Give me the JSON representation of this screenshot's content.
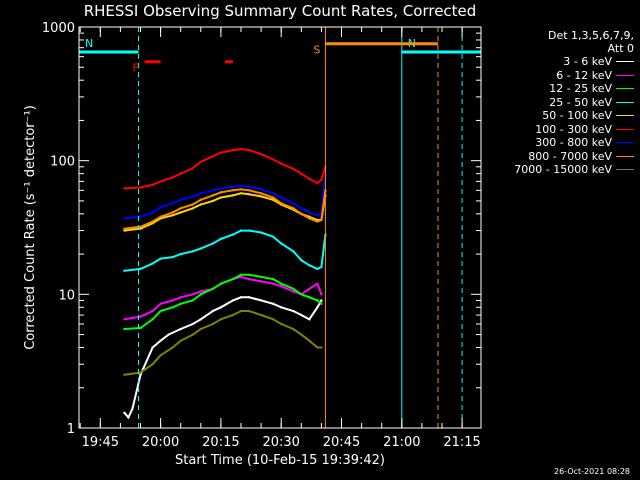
{
  "chart_data": {
    "type": "line",
    "title": "RHESSI Observing Summary Count Rates, Corrected",
    "xlabel": "Start Time (10-Feb-15 19:39:42)",
    "ylabel": "Corrected Count Rate (s⁻¹ detector⁻¹)",
    "yscale": "log",
    "ylim": [
      1,
      1000
    ],
    "y_ticks": [
      {
        "v": 1,
        "label": "1"
      },
      {
        "v": 10,
        "label": "10"
      },
      {
        "v": 100,
        "label": "100"
      },
      {
        "v": 1000,
        "label": "1000"
      }
    ],
    "xlim": [
      "19:39:42",
      "21:19:42"
    ],
    "x_ticks": [
      "19:45",
      "20:00",
      "20:15",
      "20:30",
      "20:45",
      "21:00",
      "21:15"
    ],
    "legend_header": [
      "Det 1,3,5,6,7,9,",
      "Att 0"
    ],
    "legend_position": "right",
    "series": [
      {
        "name": "3 - 6 keV",
        "color": "#ffffff",
        "x": [
          "19:51",
          "19:52",
          "19:53",
          "19:55",
          "19:58",
          "20:00",
          "20:02",
          "20:05",
          "20:08",
          "20:10",
          "20:13",
          "20:15",
          "20:18",
          "20:20",
          "20:22",
          "20:25",
          "20:28",
          "20:30",
          "20:33",
          "20:35",
          "20:37",
          "20:39",
          "20:40"
        ],
        "y": [
          1.3,
          1.2,
          1.4,
          2.5,
          4.0,
          4.5,
          5.0,
          5.5,
          6.0,
          6.5,
          7.5,
          8.0,
          9.0,
          9.5,
          9.5,
          9.0,
          8.5,
          8.0,
          7.5,
          7.0,
          6.5,
          8.0,
          9.0
        ]
      },
      {
        "name": "6 - 12 keV",
        "color": "#ff00ff",
        "x": [
          "19:51",
          "19:55",
          "19:58",
          "20:00",
          "20:03",
          "20:05",
          "20:08",
          "20:10",
          "20:13",
          "20:15",
          "20:18",
          "20:20",
          "20:22",
          "20:25",
          "20:28",
          "20:30",
          "20:33",
          "20:35",
          "20:37",
          "20:39",
          "20:40"
        ],
        "y": [
          6.5,
          6.8,
          7.5,
          8.5,
          9.0,
          9.5,
          10.0,
          10.5,
          11.0,
          12.0,
          13.0,
          13.5,
          13.0,
          12.5,
          12.0,
          11.5,
          10.5,
          10.0,
          11.0,
          12.0,
          10.0
        ]
      },
      {
        "name": "12 - 25 keV",
        "color": "#00ff00",
        "x": [
          "19:51",
          "19:55",
          "19:58",
          "20:00",
          "20:03",
          "20:05",
          "20:08",
          "20:10",
          "20:13",
          "20:15",
          "20:18",
          "20:20",
          "20:22",
          "20:25",
          "20:28",
          "20:30",
          "20:33",
          "20:35",
          "20:37",
          "20:39",
          "20:40"
        ],
        "y": [
          5.5,
          5.6,
          6.5,
          7.5,
          8.0,
          8.5,
          9.0,
          10.0,
          11.0,
          12.0,
          13.0,
          14.0,
          14.0,
          13.5,
          13.0,
          12.0,
          11.0,
          10.0,
          9.5,
          9.0,
          8.5
        ]
      },
      {
        "name": "25 - 50 keV",
        "color": "#00ffff",
        "x": [
          "19:51",
          "19:55",
          "19:58",
          "20:00",
          "20:03",
          "20:05",
          "20:08",
          "20:10",
          "20:13",
          "20:15",
          "20:18",
          "20:20",
          "20:22",
          "20:25",
          "20:28",
          "20:30",
          "20:33",
          "20:35",
          "20:37",
          "20:39",
          "20:40",
          "20:41"
        ],
        "y": [
          15,
          15.5,
          17,
          18.5,
          19,
          20,
          21,
          22,
          24,
          26,
          28,
          30,
          30,
          29,
          27,
          24,
          21,
          18,
          16.5,
          15.5,
          16,
          28
        ]
      },
      {
        "name": "50 - 100 keV",
        "color": "#ffd700",
        "x": [
          "19:51",
          "19:55",
          "19:58",
          "20:00",
          "20:03",
          "20:05",
          "20:08",
          "20:10",
          "20:13",
          "20:15",
          "20:18",
          "20:20",
          "20:22",
          "20:25",
          "20:28",
          "20:30",
          "20:33",
          "20:35",
          "20:37",
          "20:39",
          "20:40",
          "20:41"
        ],
        "y": [
          30,
          31,
          34,
          37,
          39,
          41,
          44,
          47,
          50,
          53,
          55,
          57,
          56,
          54,
          51,
          47,
          43,
          40,
          38,
          36,
          36,
          55
        ]
      },
      {
        "name": "100 - 300 keV",
        "color": "#ff0000",
        "x": [
          "19:51",
          "19:55",
          "19:58",
          "20:00",
          "20:03",
          "20:05",
          "20:08",
          "20:10",
          "20:13",
          "20:15",
          "20:18",
          "20:20",
          "20:22",
          "20:25",
          "20:28",
          "20:30",
          "20:33",
          "20:35",
          "20:37",
          "20:39",
          "20:40",
          "20:41"
        ],
        "y": [
          62,
          63,
          66,
          70,
          75,
          80,
          88,
          98,
          108,
          115,
          120,
          122,
          120,
          112,
          102,
          95,
          87,
          80,
          73,
          68,
          72,
          90
        ]
      },
      {
        "name": "300 - 800 keV",
        "color": "#0000ff",
        "x": [
          "19:51",
          "19:55",
          "19:58",
          "20:00",
          "20:03",
          "20:05",
          "20:08",
          "20:10",
          "20:13",
          "20:15",
          "20:18",
          "20:20",
          "20:22",
          "20:25",
          "20:28",
          "20:30",
          "20:33",
          "20:35",
          "20:37",
          "20:39",
          "20:40",
          "20:41"
        ],
        "y": [
          37,
          38,
          41,
          45,
          48,
          51,
          54,
          57,
          60,
          62,
          64,
          65,
          64,
          61,
          57,
          53,
          48,
          44,
          41,
          39,
          40,
          80
        ]
      },
      {
        "name": "800 - 7000 keV",
        "color": "#ff8c00",
        "x": [
          "19:51",
          "19:55",
          "19:58",
          "20:00",
          "20:03",
          "20:05",
          "20:08",
          "20:10",
          "20:13",
          "20:15",
          "20:18",
          "20:20",
          "20:22",
          "20:25",
          "20:28",
          "20:30",
          "20:33",
          "20:35",
          "20:37",
          "20:39",
          "20:40",
          "20:41"
        ],
        "y": [
          31,
          32,
          35,
          38,
          41,
          44,
          47,
          51,
          55,
          58,
          60,
          61,
          60,
          57,
          53,
          48,
          44,
          40,
          37,
          35,
          36,
          60
        ]
      },
      {
        "name": "7000 - 15000 keV",
        "color": "#808000",
        "x": [
          "19:51",
          "19:55",
          "19:58",
          "20:00",
          "20:03",
          "20:05",
          "20:08",
          "20:10",
          "20:13",
          "20:15",
          "20:18",
          "20:20",
          "20:22",
          "20:25",
          "20:28",
          "20:30",
          "20:33",
          "20:35",
          "20:37",
          "20:39",
          "20:40"
        ],
        "y": [
          2.5,
          2.6,
          3.0,
          3.5,
          4.0,
          4.5,
          5.0,
          5.5,
          6.0,
          6.5,
          7.0,
          7.5,
          7.5,
          7.0,
          6.5,
          6.0,
          5.5,
          5.0,
          4.5,
          4.0,
          4.0
        ]
      }
    ],
    "annotations": [
      {
        "label": "N",
        "color": "#00ffff",
        "type": "bar",
        "x": [
          "19:39:42",
          "19:54:30"
        ],
        "y": 650
      },
      {
        "label": "N",
        "color": "#00ffff",
        "type": "bar",
        "x": [
          "21:00",
          "21:19:42"
        ],
        "y": 650
      },
      {
        "label": "S",
        "color": "#ff8c00",
        "type": "bar",
        "x": [
          "20:41",
          "21:09"
        ],
        "y": 750
      },
      {
        "label": "F",
        "color": "#ff0000",
        "type": "bar",
        "x": [
          "19:56",
          "20:00"
        ],
        "y": 550
      },
      {
        "label": "",
        "color": "#ff0000",
        "type": "bar",
        "x": [
          "20:16",
          "20:18"
        ],
        "y": 550
      }
    ],
    "vertical_markers": [
      {
        "x": "19:39:42",
        "color": "#00ffff",
        "style": "solid"
      },
      {
        "x": "19:54:30",
        "color": "#00ffff",
        "style": "dashed"
      },
      {
        "x": "20:41",
        "color": "#ff8c00",
        "style": "solid"
      },
      {
        "x": "21:00",
        "color": "#00ffff",
        "style": "solid"
      },
      {
        "x": "21:09",
        "color": "#ff8c00",
        "style": "dashed"
      },
      {
        "x": "21:15",
        "color": "#00ffff",
        "style": "dashed"
      }
    ]
  },
  "footer": {
    "timestamp": "26-Oct-2021 08:28"
  }
}
